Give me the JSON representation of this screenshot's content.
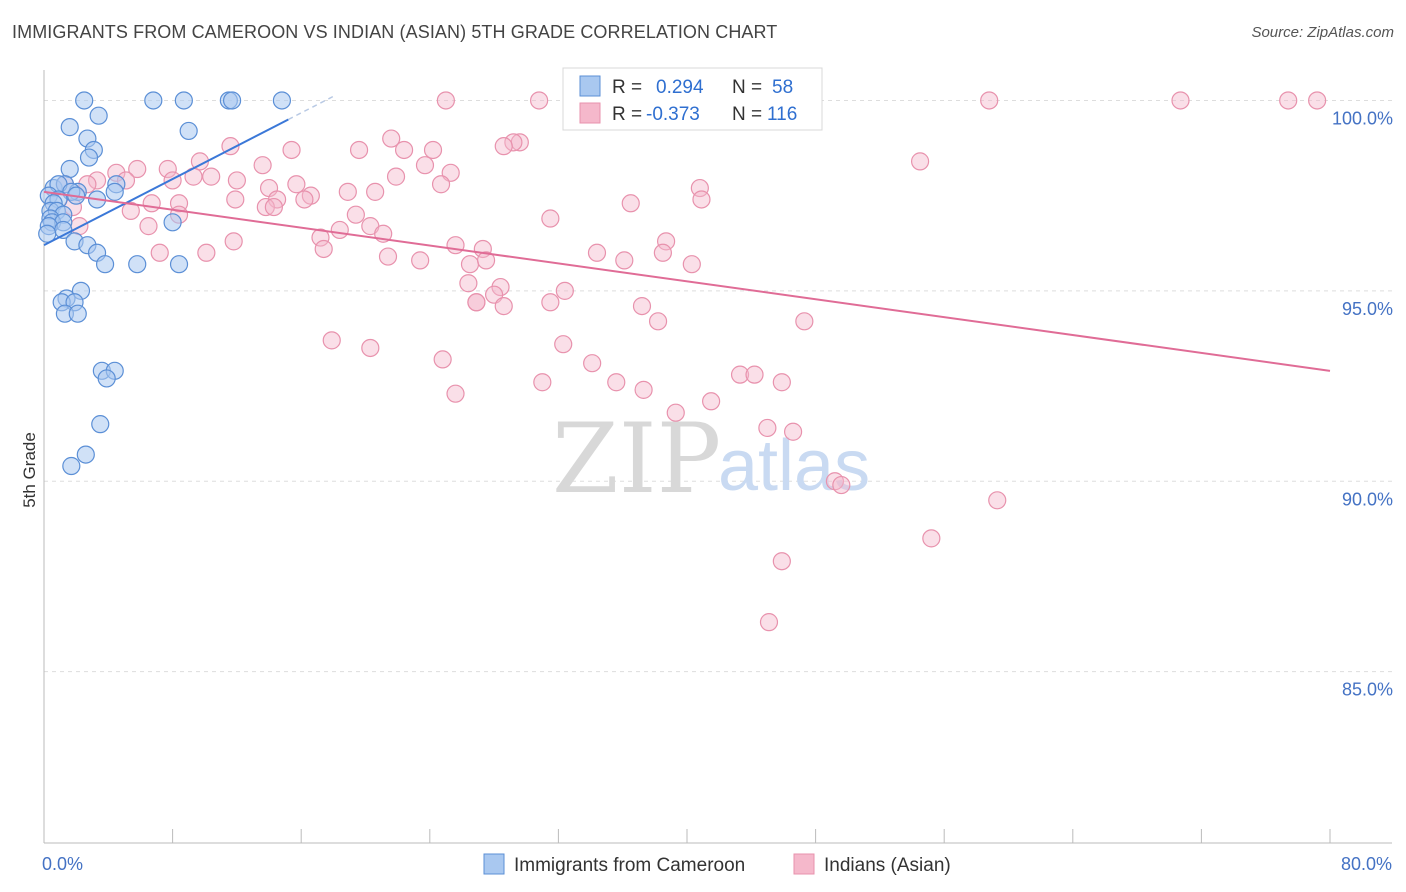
{
  "title": "IMMIGRANTS FROM CAMEROON VS INDIAN (ASIAN) 5TH GRADE CORRELATION CHART",
  "source": "Source: ZipAtlas.com",
  "watermark": {
    "zip": "ZIP",
    "atlas": "atlas"
  },
  "colors": {
    "blue_fill": "#a9c8f0",
    "blue_stroke": "#5b8fd6",
    "blue_line": "#3b78d8",
    "pink_fill": "#f5b8cb",
    "pink_stroke": "#e892ad",
    "pink_line": "#e06c96",
    "grid": "#dddddd",
    "tick_text": "#4472c4"
  },
  "chart_data": {
    "type": "scatter",
    "xlabel": "",
    "ylabel": "5th Grade",
    "xlim": [
      0,
      80
    ],
    "ylim": [
      80.5,
      100.8
    ],
    "x_tick_labels": [
      "0.0%",
      "80.0%"
    ],
    "x_minor_ticks": [
      0,
      8,
      16,
      24,
      32,
      40,
      48,
      56,
      64,
      72,
      80
    ],
    "y_ticks": [
      85,
      90,
      95,
      100
    ],
    "y_tick_labels": [
      "85.0%",
      "90.0%",
      "95.0%",
      "100.0%"
    ],
    "grid": true,
    "legend": {
      "r_label": "R =",
      "n_label": "N =",
      "entries": [
        {
          "r": "0.294",
          "n": "58"
        },
        {
          "r": "-0.373",
          "n": "116"
        }
      ]
    },
    "series": [
      {
        "name": "Immigrants from Cameroon",
        "color": "#a9c8f0",
        "trend": {
          "x0": 0,
          "y0": 96.2,
          "x1": 15.2,
          "y1": 99.5,
          "dash_to_x": 18
        },
        "points": [
          [
            2.5,
            100
          ],
          [
            6.8,
            100
          ],
          [
            8.7,
            100
          ],
          [
            11.5,
            100
          ],
          [
            11.7,
            100
          ],
          [
            14.8,
            100
          ],
          [
            3.4,
            99.6
          ],
          [
            1.6,
            99.3
          ],
          [
            9.0,
            99.2
          ],
          [
            2.7,
            99.0
          ],
          [
            3.1,
            98.7
          ],
          [
            2.8,
            98.5
          ],
          [
            1.6,
            98.2
          ],
          [
            0.6,
            97.7
          ],
          [
            1.3,
            97.8
          ],
          [
            0.9,
            97.8
          ],
          [
            4.5,
            97.8
          ],
          [
            2.1,
            97.6
          ],
          [
            1.7,
            97.6
          ],
          [
            4.4,
            97.6
          ],
          [
            0.3,
            97.5
          ],
          [
            2.0,
            97.5
          ],
          [
            0.9,
            97.4
          ],
          [
            3.3,
            97.4
          ],
          [
            0.6,
            97.3
          ],
          [
            0.4,
            97.1
          ],
          [
            0.8,
            97.1
          ],
          [
            1.2,
            97.0
          ],
          [
            0.4,
            96.9
          ],
          [
            0.5,
            96.8
          ],
          [
            1.2,
            96.8
          ],
          [
            8.0,
            96.8
          ],
          [
            0.3,
            96.7
          ],
          [
            1.2,
            96.6
          ],
          [
            0.2,
            96.5
          ],
          [
            1.9,
            96.3
          ],
          [
            2.7,
            96.2
          ],
          [
            3.3,
            96.0
          ],
          [
            3.8,
            95.7
          ],
          [
            5.8,
            95.7
          ],
          [
            8.4,
            95.7
          ],
          [
            2.3,
            95.0
          ],
          [
            1.4,
            94.8
          ],
          [
            1.1,
            94.7
          ],
          [
            1.9,
            94.7
          ],
          [
            1.3,
            94.4
          ],
          [
            2.1,
            94.4
          ],
          [
            3.6,
            92.9
          ],
          [
            4.4,
            92.9
          ],
          [
            3.9,
            92.7
          ],
          [
            3.5,
            91.5
          ],
          [
            2.6,
            90.7
          ],
          [
            1.7,
            90.4
          ]
        ]
      },
      {
        "name": "Indians (Asian)",
        "color": "#f5b8cb",
        "trend": {
          "x0": 0,
          "y0": 97.6,
          "x1": 80,
          "y1": 92.9
        },
        "points": [
          [
            25.0,
            100
          ],
          [
            30.8,
            100
          ],
          [
            47.0,
            100
          ],
          [
            58.8,
            100
          ],
          [
            70.7,
            100
          ],
          [
            77.4,
            100
          ],
          [
            79.2,
            100
          ],
          [
            21.6,
            99.0
          ],
          [
            29.6,
            98.9
          ],
          [
            29.2,
            98.9
          ],
          [
            28.6,
            98.8
          ],
          [
            11.6,
            98.8
          ],
          [
            22.4,
            98.7
          ],
          [
            24.2,
            98.7
          ],
          [
            15.4,
            98.7
          ],
          [
            19.6,
            98.7
          ],
          [
            54.5,
            98.4
          ],
          [
            9.7,
            98.4
          ],
          [
            13.6,
            98.3
          ],
          [
            23.7,
            98.3
          ],
          [
            7.7,
            98.2
          ],
          [
            5.8,
            98.2
          ],
          [
            4.5,
            98.1
          ],
          [
            10.4,
            98.0
          ],
          [
            21.9,
            98.0
          ],
          [
            25.3,
            98.1
          ],
          [
            9.3,
            98.0
          ],
          [
            12.0,
            97.9
          ],
          [
            3.3,
            97.9
          ],
          [
            15.7,
            97.8
          ],
          [
            8.0,
            97.9
          ],
          [
            5.1,
            97.9
          ],
          [
            24.7,
            97.8
          ],
          [
            14.0,
            97.7
          ],
          [
            1.3,
            97.8
          ],
          [
            2.7,
            97.8
          ],
          [
            40.8,
            97.7
          ],
          [
            18.9,
            97.6
          ],
          [
            20.6,
            97.6
          ],
          [
            16.6,
            97.5
          ],
          [
            14.5,
            97.4
          ],
          [
            16.2,
            97.4
          ],
          [
            36.5,
            97.3
          ],
          [
            40.9,
            97.4
          ],
          [
            11.9,
            97.4
          ],
          [
            6.7,
            97.3
          ],
          [
            8.4,
            97.3
          ],
          [
            13.8,
            97.2
          ],
          [
            14.3,
            97.2
          ],
          [
            1.8,
            97.2
          ],
          [
            5.4,
            97.1
          ],
          [
            19.4,
            97.0
          ],
          [
            8.4,
            97.0
          ],
          [
            31.5,
            96.9
          ],
          [
            20.3,
            96.7
          ],
          [
            2.2,
            96.7
          ],
          [
            6.5,
            96.7
          ],
          [
            18.4,
            96.6
          ],
          [
            17.2,
            96.4
          ],
          [
            25.6,
            96.2
          ],
          [
            21.1,
            96.5
          ],
          [
            11.8,
            96.3
          ],
          [
            38.7,
            96.3
          ],
          [
            17.4,
            96.1
          ],
          [
            27.3,
            96.1
          ],
          [
            38.5,
            96.0
          ],
          [
            34.4,
            96.0
          ],
          [
            21.4,
            95.9
          ],
          [
            10.1,
            96.0
          ],
          [
            7.2,
            96.0
          ],
          [
            36.1,
            95.8
          ],
          [
            23.4,
            95.8
          ],
          [
            26.5,
            95.7
          ],
          [
            40.3,
            95.7
          ],
          [
            27.5,
            95.8
          ],
          [
            26.4,
            95.2
          ],
          [
            28.4,
            95.1
          ],
          [
            32.4,
            95.0
          ],
          [
            28.0,
            94.9
          ],
          [
            26.9,
            94.7
          ],
          [
            31.5,
            94.7
          ],
          [
            26.9,
            94.7
          ],
          [
            28.6,
            94.6
          ],
          [
            37.2,
            94.6
          ],
          [
            38.2,
            94.2
          ],
          [
            47.3,
            94.2
          ],
          [
            17.9,
            93.7
          ],
          [
            20.3,
            93.5
          ],
          [
            32.3,
            93.6
          ],
          [
            24.8,
            93.2
          ],
          [
            34.1,
            93.1
          ],
          [
            43.3,
            92.8
          ],
          [
            44.2,
            92.8
          ],
          [
            31.0,
            92.6
          ],
          [
            35.6,
            92.6
          ],
          [
            45.9,
            92.6
          ],
          [
            25.6,
            92.3
          ],
          [
            37.3,
            92.4
          ],
          [
            41.5,
            92.1
          ],
          [
            39.3,
            91.8
          ],
          [
            45.0,
            91.4
          ],
          [
            46.6,
            91.3
          ],
          [
            49.2,
            90.0
          ],
          [
            49.6,
            89.9
          ],
          [
            59.3,
            89.5
          ],
          [
            55.2,
            88.5
          ],
          [
            45.9,
            87.9
          ],
          [
            45.1,
            86.3
          ]
        ]
      }
    ]
  },
  "bottom_legend": {
    "items": [
      "Immigrants from Cameroon",
      "Indians (Asian)"
    ]
  }
}
